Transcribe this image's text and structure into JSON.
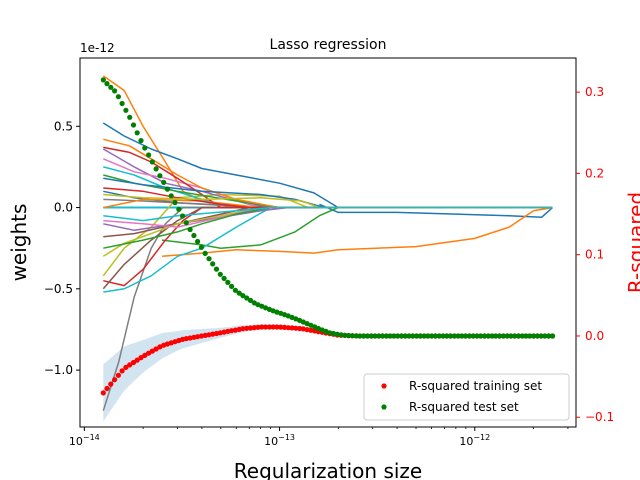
{
  "chart_data": {
    "type": "line",
    "title": "Lasso regression",
    "xlabel": "Regularization size",
    "ylabel_left": "weights",
    "ylabel_right": "R-squared",
    "x_scale": "log",
    "xlim": [
      9.5e-15,
      3.3e-12
    ],
    "ylim_left": [
      -1.35,
      0.92
    ],
    "ylim_right": [
      -0.112,
      0.342
    ],
    "left_axis_offset_label": "1e-12",
    "x_ticks": [
      {
        "value": 1e-14,
        "label": "10−14"
      },
      {
        "value": 1e-13,
        "label": "10−13"
      },
      {
        "value": 1e-12,
        "label": "10−12"
      }
    ],
    "y_ticks_left": [
      {
        "value": 0.5,
        "label": "0.5"
      },
      {
        "value": 0.0,
        "label": "0.0"
      },
      {
        "value": -0.5,
        "label": "−0.5"
      },
      {
        "value": -1.0,
        "label": "−1.0"
      }
    ],
    "y_ticks_right": [
      {
        "value": 0.3,
        "label": "0.3"
      },
      {
        "value": 0.2,
        "label": "0.2"
      },
      {
        "value": 0.1,
        "label": "0.1"
      },
      {
        "value": 0.0,
        "label": "0.0"
      },
      {
        "value": -0.1,
        "label": "−0.1"
      }
    ],
    "alpha_range": [
      1.25e-14,
      2.5e-12
    ],
    "legend_position": "lower-right",
    "legend": [
      {
        "label": "R-squared training set",
        "color": "#ff0000",
        "marker": "dot"
      },
      {
        "label": "R-squared test set",
        "color": "#008000",
        "marker": "dot"
      }
    ],
    "weight_series_approx": [
      {
        "color": "#ff7f0e",
        "points": [
          [
            1.25e-14,
            0.81
          ],
          [
            1.6e-14,
            0.72
          ],
          [
            2e-14,
            0.5
          ],
          [
            2.6e-14,
            0.28
          ],
          [
            3.2e-14,
            0.1
          ],
          [
            4e-14,
            0.04
          ],
          [
            6e-14,
            0.0
          ]
        ]
      },
      {
        "color": "#1f77b4",
        "points": [
          [
            1.25e-14,
            0.52
          ],
          [
            1.6e-14,
            0.44
          ],
          [
            2.2e-14,
            0.36
          ],
          [
            3e-14,
            0.3
          ],
          [
            4e-14,
            0.24
          ],
          [
            6e-14,
            0.2
          ],
          [
            1e-13,
            0.15
          ],
          [
            1.5e-13,
            0.09
          ],
          [
            2e-13,
            0.0
          ]
        ]
      },
      {
        "color": "#1f77b4",
        "points": [
          [
            1.6e-13,
            0.02
          ],
          [
            2e-13,
            -0.03
          ],
          [
            4e-13,
            -0.03
          ],
          [
            8e-13,
            -0.04
          ],
          [
            1.5e-12,
            -0.05
          ],
          [
            2.2e-12,
            -0.06
          ],
          [
            2.5e-12,
            0.0
          ]
        ]
      },
      {
        "color": "#ff7f0e",
        "points": [
          [
            2.5e-14,
            -0.3
          ],
          [
            4e-14,
            -0.28
          ],
          [
            6e-14,
            -0.26
          ],
          [
            1e-13,
            -0.27
          ],
          [
            1.5e-13,
            -0.28
          ],
          [
            2e-13,
            -0.26
          ],
          [
            5e-13,
            -0.24
          ],
          [
            1e-12,
            -0.19
          ],
          [
            1.5e-12,
            -0.12
          ],
          [
            2e-12,
            -0.02
          ],
          [
            2.5e-12,
            0.0
          ]
        ]
      },
      {
        "color": "#2ca02c",
        "points": [
          [
            2.5e-14,
            -0.2
          ],
          [
            4e-14,
            -0.23
          ],
          [
            5e-14,
            -0.25
          ],
          [
            8e-14,
            -0.23
          ],
          [
            1.2e-13,
            -0.15
          ],
          [
            1.6e-13,
            -0.05
          ],
          [
            2e-13,
            0.0
          ]
        ]
      },
      {
        "color": "#7f7f7f",
        "points": [
          [
            1.25e-14,
            -1.25
          ],
          [
            1.5e-14,
            -0.95
          ],
          [
            1.8e-14,
            -0.55
          ],
          [
            2.2e-14,
            -0.25
          ],
          [
            2.6e-14,
            -0.1
          ],
          [
            3.2e-14,
            0.0
          ]
        ]
      },
      {
        "color": "#17becf",
        "points": [
          [
            1.25e-14,
            -0.52
          ],
          [
            1.6e-14,
            -0.5
          ],
          [
            2.2e-14,
            -0.42
          ],
          [
            3e-14,
            -0.3
          ],
          [
            4e-14,
            -0.25
          ],
          [
            6e-14,
            -0.12
          ],
          [
            9e-14,
            0.0
          ]
        ]
      },
      {
        "color": "#d62728",
        "points": [
          [
            1.25e-14,
            -0.45
          ],
          [
            1.6e-14,
            -0.48
          ],
          [
            2e-14,
            -0.38
          ],
          [
            2.6e-14,
            -0.2
          ],
          [
            3.2e-14,
            -0.08
          ],
          [
            4e-14,
            0.0
          ]
        ]
      },
      {
        "color": "#8c564b",
        "points": [
          [
            1.25e-14,
            -0.5
          ],
          [
            1.6e-14,
            -0.35
          ],
          [
            2.2e-14,
            -0.2
          ],
          [
            3e-14,
            -0.08
          ],
          [
            4e-14,
            0.0
          ]
        ]
      },
      {
        "color": "#bcbd22",
        "points": [
          [
            1.25e-14,
            -0.42
          ],
          [
            1.6e-14,
            -0.25
          ],
          [
            2.2e-14,
            -0.12
          ],
          [
            3e-14,
            0.06
          ],
          [
            5e-14,
            0.08
          ],
          [
            1e-13,
            0.07
          ],
          [
            1.4e-13,
            0.0
          ]
        ]
      },
      {
        "color": "#9467bd",
        "points": [
          [
            1.25e-14,
            0.36
          ],
          [
            1.8e-14,
            0.25
          ],
          [
            2.6e-14,
            0.15
          ],
          [
            4e-14,
            0.1
          ],
          [
            7e-14,
            0.02
          ],
          [
            9e-14,
            0.0
          ]
        ]
      },
      {
        "color": "#e377c2",
        "points": [
          [
            1.25e-14,
            0.3
          ],
          [
            1.8e-14,
            0.22
          ],
          [
            2.6e-14,
            0.18
          ],
          [
            4e-14,
            0.12
          ],
          [
            6e-14,
            0.05
          ],
          [
            8e-14,
            0.0
          ]
        ]
      },
      {
        "color": "#17becf",
        "points": [
          [
            1.25e-14,
            0.25
          ],
          [
            1.8e-14,
            0.2
          ],
          [
            2.6e-14,
            0.12
          ],
          [
            4e-14,
            0.05
          ],
          [
            6e-14,
            0.0
          ]
        ]
      },
      {
        "color": "#d62728",
        "points": [
          [
            1.25e-14,
            0.37
          ],
          [
            1.7e-14,
            0.34
          ],
          [
            2.2e-14,
            0.28
          ],
          [
            3e-14,
            0.18
          ],
          [
            4e-14,
            0.08
          ],
          [
            5e-14,
            0.0
          ]
        ]
      },
      {
        "color": "#2ca02c",
        "points": [
          [
            1.25e-14,
            0.2
          ],
          [
            1.8e-14,
            0.15
          ],
          [
            3e-14,
            0.1
          ],
          [
            6e-14,
            0.04
          ],
          [
            1e-13,
            0.0
          ]
        ]
      },
      {
        "color": "#ff7f0e",
        "points": [
          [
            1.25e-14,
            0.42
          ],
          [
            1.7e-14,
            0.38
          ],
          [
            2.2e-14,
            0.3
          ],
          [
            3e-14,
            0.2
          ],
          [
            4e-14,
            0.12
          ],
          [
            6e-14,
            0.05
          ],
          [
            1e-13,
            0.0
          ]
        ]
      },
      {
        "color": "#1f77b4",
        "points": [
          [
            1.25e-14,
            0.1
          ],
          [
            1.8e-14,
            0.06
          ],
          [
            3e-14,
            0.03
          ],
          [
            6e-14,
            0.01
          ],
          [
            1e-13,
            0.0
          ]
        ]
      },
      {
        "color": "#9467bd",
        "points": [
          [
            1.25e-14,
            -0.1
          ],
          [
            1.8e-14,
            -0.14
          ],
          [
            3e-14,
            -0.1
          ],
          [
            5e-14,
            -0.06
          ],
          [
            8e-14,
            -0.02
          ],
          [
            1.1e-13,
            0.0
          ]
        ]
      },
      {
        "color": "#8c564b",
        "points": [
          [
            1.25e-14,
            -0.18
          ],
          [
            1.8e-14,
            -0.16
          ],
          [
            3e-14,
            -0.1
          ],
          [
            5e-14,
            -0.04
          ],
          [
            7e-14,
            0.0
          ]
        ]
      },
      {
        "color": "#bcbd22",
        "points": [
          [
            1.25e-14,
            -0.3
          ],
          [
            1.6e-14,
            -0.22
          ],
          [
            2.2e-14,
            -0.16
          ],
          [
            3e-14,
            -0.1
          ],
          [
            5e-14,
            -0.05
          ],
          [
            8e-14,
            0.0
          ]
        ]
      },
      {
        "color": "#e377c2",
        "points": [
          [
            1.25e-14,
            -0.08
          ],
          [
            2e-14,
            -0.1
          ],
          [
            3e-14,
            -0.12
          ],
          [
            5e-14,
            -0.06
          ],
          [
            8e-14,
            0.0
          ]
        ]
      },
      {
        "color": "#7f7f7f",
        "points": [
          [
            1.25e-14,
            0.05
          ],
          [
            2e-14,
            0.04
          ],
          [
            4e-14,
            0.02
          ],
          [
            8e-14,
            0.0
          ]
        ]
      },
      {
        "color": "#1f77b4",
        "points": [
          [
            1.25e-14,
            0.18
          ],
          [
            2e-14,
            0.14
          ],
          [
            4e-14,
            0.1
          ],
          [
            8e-14,
            0.08
          ],
          [
            1.2e-13,
            0.05
          ],
          [
            1.7e-13,
            0.0
          ]
        ]
      },
      {
        "color": "#2ca02c",
        "points": [
          [
            1.25e-14,
            -0.25
          ],
          [
            2e-14,
            -0.2
          ],
          [
            3e-14,
            -0.15
          ],
          [
            4e-14,
            -0.1
          ],
          [
            6e-14,
            -0.04
          ],
          [
            9e-14,
            0.0
          ]
        ]
      },
      {
        "color": "#ff7f0e",
        "points": [
          [
            1.25e-14,
            0.0
          ],
          [
            2e-14,
            0.05
          ],
          [
            4e-14,
            0.04
          ],
          [
            8e-14,
            0.0
          ]
        ]
      },
      {
        "color": "#d62728",
        "points": [
          [
            1.25e-14,
            0.12
          ],
          [
            2e-14,
            0.1
          ],
          [
            3e-14,
            0.06
          ],
          [
            5e-14,
            0.02
          ],
          [
            7e-14,
            0.0
          ]
        ]
      },
      {
        "color": "#bcbd22",
        "points": [
          [
            1.25e-14,
            0.08
          ],
          [
            2e-14,
            0.06
          ],
          [
            4e-14,
            0.05
          ],
          [
            8e-14,
            0.06
          ],
          [
            1.3e-13,
            0.04
          ],
          [
            1.6e-13,
            0.0
          ]
        ]
      },
      {
        "color": "#17becf",
        "points": [
          [
            1.25e-14,
            -0.05
          ],
          [
            2e-14,
            -0.08
          ],
          [
            3e-14,
            -0.05
          ],
          [
            6e-14,
            -0.02
          ],
          [
            9e-14,
            0.0
          ]
        ]
      }
    ],
    "zero_line_color": "#17becf",
    "r2_training_band_color": "#1f77b4",
    "r2_training_series": {
      "name": "R-squared training set",
      "color": "#ff0000"
    },
    "r2_test_series": {
      "name": "R-squared test set",
      "color": "#008000"
    },
    "r2_training_curve": [
      [
        1.25e-14,
        -0.07
      ],
      [
        1.6e-14,
        -0.04
      ],
      [
        2e-14,
        -0.025
      ],
      [
        2.5e-14,
        -0.012
      ],
      [
        3.2e-14,
        -0.004
      ],
      [
        4e-14,
        0.0
      ],
      [
        5e-14,
        0.004
      ],
      [
        6.5e-14,
        0.009
      ],
      [
        8e-14,
        0.011
      ],
      [
        1e-13,
        0.011
      ],
      [
        1.3e-13,
        0.009
      ],
      [
        1.7e-13,
        0.004
      ],
      [
        2e-13,
        0.001
      ],
      [
        2.5e-13,
        0.0
      ],
      [
        2.5e-12,
        0.0
      ]
    ],
    "r2_training_band_halfwidth": [
      [
        1.25e-14,
        0.035
      ],
      [
        2e-14,
        0.02
      ],
      [
        3e-14,
        0.012
      ],
      [
        5e-14,
        0.006
      ],
      [
        8e-14,
        0.003
      ],
      [
        1.3e-13,
        0.0
      ]
    ],
    "r2_test_curve": [
      [
        1.25e-14,
        0.315
      ],
      [
        1.45e-14,
        0.3
      ],
      [
        1.7e-14,
        0.27
      ],
      [
        2e-14,
        0.235
      ],
      [
        2.4e-14,
        0.2
      ],
      [
        2.9e-14,
        0.165
      ],
      [
        3.5e-14,
        0.13
      ],
      [
        4.2e-14,
        0.1
      ],
      [
        5e-14,
        0.075
      ],
      [
        6e-14,
        0.055
      ],
      [
        7.5e-14,
        0.04
      ],
      [
        9e-14,
        0.032
      ],
      [
        1.1e-13,
        0.025
      ],
      [
        1.3e-13,
        0.018
      ],
      [
        1.55e-13,
        0.01
      ],
      [
        1.8e-13,
        0.004
      ],
      [
        2.1e-13,
        0.001
      ],
      [
        2.5e-13,
        0.0
      ],
      [
        2.5e-12,
        0.0
      ]
    ],
    "r2_markers_count": 120
  }
}
